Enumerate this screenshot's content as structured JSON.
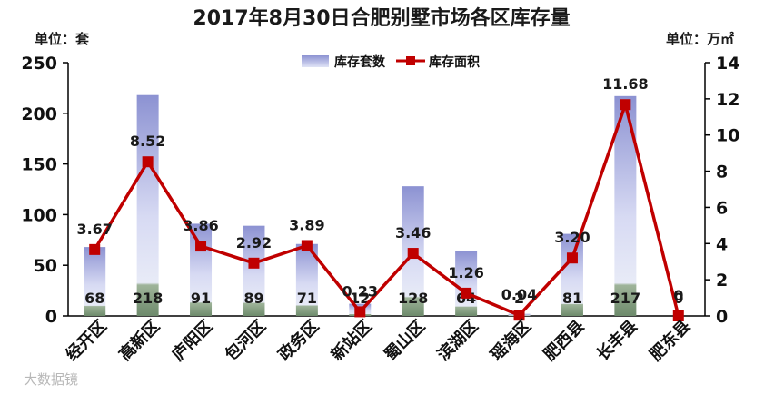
{
  "title": "2017年8月30日合肥别墅市场各区库存量",
  "left_unit": "单位：套",
  "right_unit": "单位：万㎡",
  "watermark": "大数据镜",
  "legend": {
    "position": "top-center",
    "bar_label": "库存套数",
    "line_label": "库存面积"
  },
  "colors": {
    "bar_top": "#8c92d2",
    "bar_mid": "#d7daf3",
    "bar_bottom": "#6d8a6b",
    "line": "#c00000"
  },
  "chart_data": {
    "type": "bar",
    "categories": [
      "经开区",
      "高新区",
      "庐阳区",
      "包河区",
      "政务区",
      "新站区",
      "蜀山区",
      "滨湖区",
      "瑶海区",
      "肥西县",
      "长丰县",
      "肥东县"
    ],
    "series": [
      {
        "name": "库存套数",
        "type": "bar",
        "axis": "left",
        "values": [
          68,
          218,
          91,
          89,
          71,
          12,
          128,
          64,
          2,
          81,
          217,
          0
        ],
        "labels": [
          "68",
          "218",
          "91",
          "89",
          "71",
          "12",
          "128",
          "64",
          "2",
          "81",
          "217",
          "0"
        ]
      },
      {
        "name": "库存面积",
        "type": "line",
        "axis": "right",
        "values": [
          3.67,
          8.52,
          3.86,
          2.92,
          3.89,
          0.23,
          3.46,
          1.26,
          0.04,
          3.2,
          11.68,
          0
        ],
        "labels": [
          "3.67",
          "8.52",
          "3.86",
          "2.92",
          "3.89",
          "0.23",
          "3.46",
          "1.26",
          "0.04",
          "3.20",
          "11.68",
          "0"
        ]
      }
    ],
    "y_left": {
      "range": [
        0,
        250
      ],
      "ticks": [
        "0",
        "50",
        "100",
        "150",
        "200",
        "250"
      ]
    },
    "y_right": {
      "range": [
        0,
        14
      ],
      "ticks": [
        "0",
        "2",
        "4",
        "6",
        "8",
        "10",
        "12",
        "14"
      ]
    },
    "grid": false
  }
}
